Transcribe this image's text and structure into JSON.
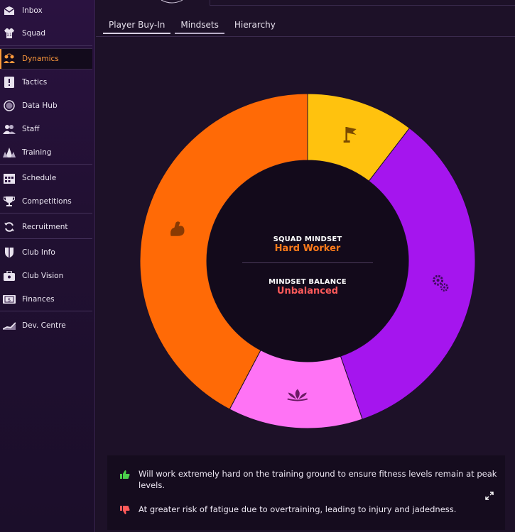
{
  "sidebar": {
    "items": [
      {
        "label": "Inbox",
        "icon": "inbox-icon"
      },
      {
        "label": "Squad",
        "icon": "shirt-icon"
      },
      {
        "label": "Dynamics",
        "icon": "dynamics-icon",
        "active": true
      },
      {
        "label": "Tactics",
        "icon": "tactics-icon"
      },
      {
        "label": "Data Hub",
        "icon": "data-hub-icon"
      },
      {
        "label": "Staff",
        "icon": "staff-icon"
      },
      {
        "label": "Training",
        "icon": "training-icon"
      },
      {
        "label": "Schedule",
        "icon": "calendar-icon"
      },
      {
        "label": "Competitions",
        "icon": "trophy-icon"
      },
      {
        "label": "Recruitment",
        "icon": "recruitment-icon"
      },
      {
        "label": "Club Info",
        "icon": "shield-icon"
      },
      {
        "label": "Club Vision",
        "icon": "briefcase-icon"
      },
      {
        "label": "Finances",
        "icon": "money-icon"
      },
      {
        "label": "Dev. Centre",
        "icon": "dev-centre-icon"
      }
    ]
  },
  "tabs": [
    {
      "label": "Player Buy-In"
    },
    {
      "label": "Mindsets"
    },
    {
      "label": "Hierarchy"
    }
  ],
  "chart_data": {
    "type": "pie",
    "donut": true,
    "segments": [
      {
        "icon": "flag-icon",
        "value": 10.4,
        "color": "#ffc20e"
      },
      {
        "icon": "gears-icon",
        "value": 34.3,
        "color": "#a515ee"
      },
      {
        "icon": "lotus-icon",
        "value": 13.0,
        "color": "#ff73f5"
      },
      {
        "icon": "muscle-icon",
        "value": 42.3,
        "color": "#ff6a06"
      }
    ]
  },
  "center": {
    "mindset_label": "SQUAD MINDSET",
    "mindset_value": "Hard Worker",
    "balance_label": "MINDSET BALANCE",
    "balance_value": "Unbalanced"
  },
  "info": {
    "positive": "Will work extremely hard on the training ground to ensure fitness levels remain at peak levels.",
    "negative": "At greater risk of fatigue due to overtraining, leading to injury and jadedness."
  },
  "colors": {
    "accent": "#ff9a3c",
    "positive": "#4bd04b",
    "negative": "#ff5a5a"
  }
}
